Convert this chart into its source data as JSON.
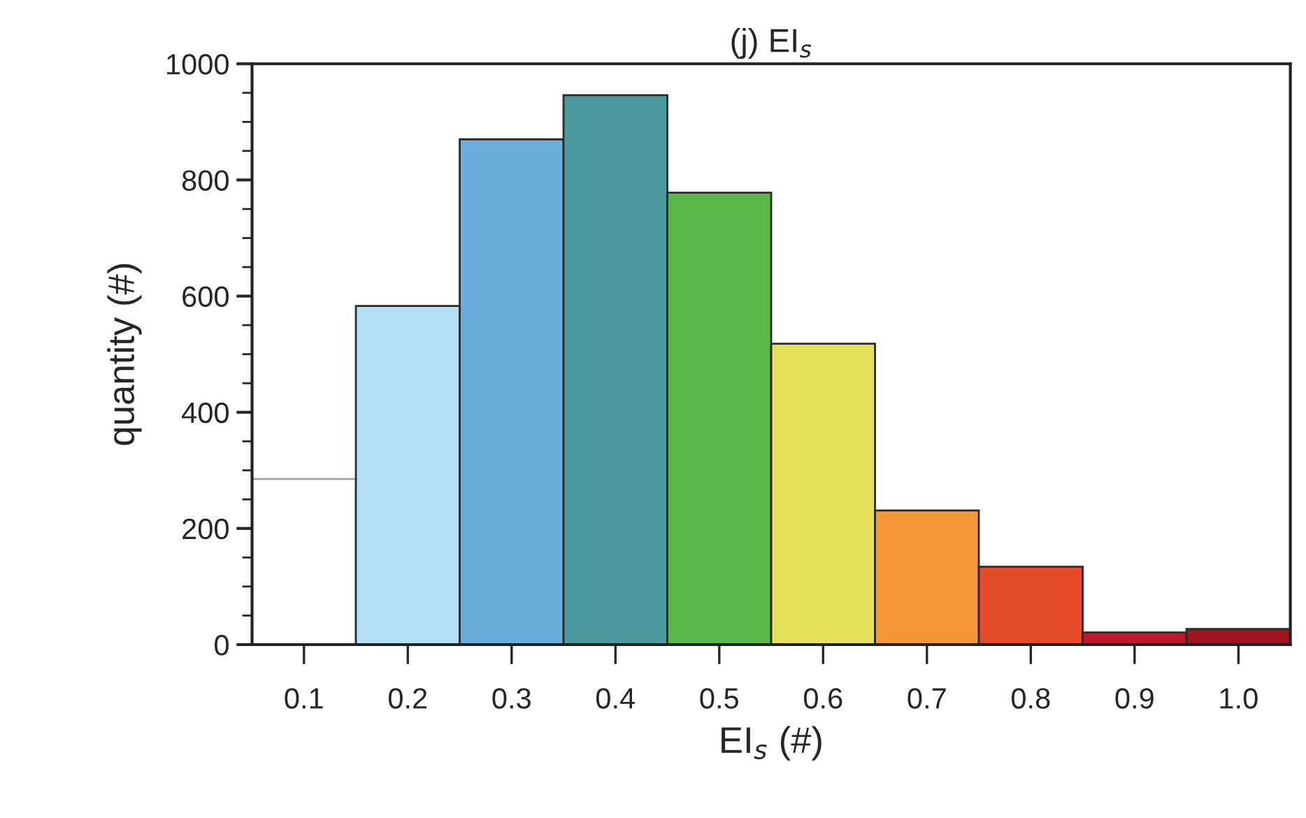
{
  "chart_data": {
    "type": "bar",
    "title": "(j) EI$_{s}$",
    "xlabel": "EI$_{s}$ (#)",
    "ylabel": "quantity (#)",
    "categories": [
      "0.1",
      "0.2",
      "0.3",
      "0.4",
      "0.5",
      "0.6",
      "0.7",
      "0.8",
      "0.9",
      "1.0"
    ],
    "values": [
      285,
      583,
      870,
      946,
      778,
      518,
      231,
      134,
      21,
      27
    ],
    "colors": [
      "#ffffff",
      "#b3e0f5",
      "#6baedb",
      "#4a9a9e",
      "#5cb848",
      "#e5e05a",
      "#f59639",
      "#e44a2a",
      "#c0182b",
      "#a01420"
    ],
    "ylim": [
      0,
      1000
    ],
    "yticks": [
      0,
      200,
      400,
      600,
      800,
      1000
    ],
    "grid": false
  }
}
